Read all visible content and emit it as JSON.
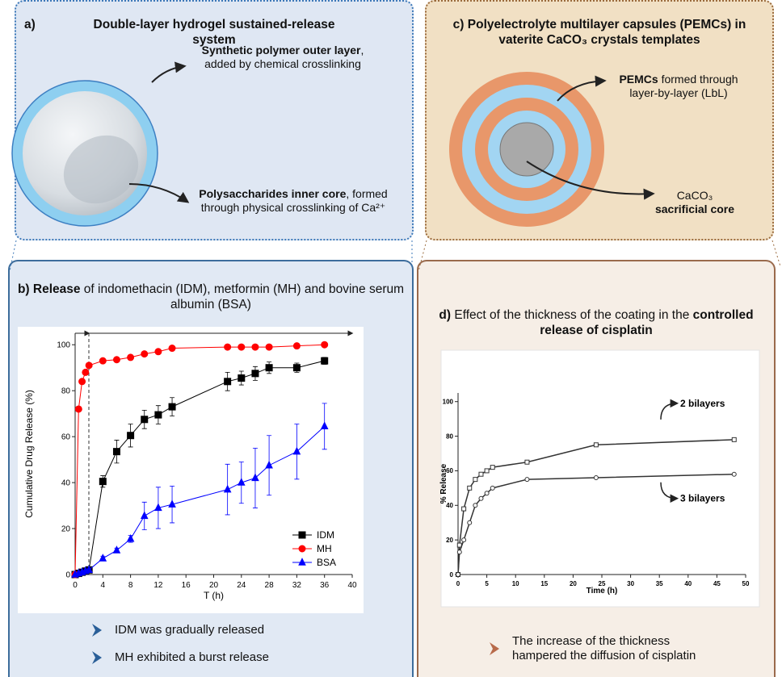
{
  "panels": {
    "a": {
      "label": "a)",
      "title": "Double-layer hydrogel sustained-release system",
      "outer_note": [
        "Synthetic polymer outer layer",
        ", added by chemical crosslinking"
      ],
      "inner_note": [
        "Polysaccharides inner core",
        ", formed through physical crosslinking of Ca²⁺"
      ]
    },
    "b": {
      "label": "b)",
      "title": [
        "Release",
        " of indomethacin (IDM), metformin (MH) and bovine serum albumin (BSA)"
      ],
      "notes": [
        "IDM was gradually released",
        "MH exhibited a burst release"
      ]
    },
    "c": {
      "label": "c)",
      "title": "Polyelectrolyte multilayer capsules (PEMCs) in vaterite CaCO₃ crystals templates",
      "outer_note": [
        "PEMCs",
        " formed through layer-by-layer (LbL)"
      ],
      "core_note": [
        "CaCO₃",
        "sacrificial core"
      ]
    },
    "d": {
      "label": "d)",
      "title": [
        "Effect of the thickness of the coating in the ",
        "controlled release of cisplatin"
      ],
      "notes": [
        "The increase of the thickness hampered the diffusion of cisplatin"
      ]
    }
  },
  "chart_data": [
    {
      "type": "line",
      "x_label": "T (h)",
      "y_label": "Cumulative Drug  Release (%)",
      "x": [
        0,
        0.5,
        1,
        1.5,
        2,
        4,
        6,
        8,
        10,
        12,
        14,
        22,
        24,
        26,
        28,
        32,
        36
      ],
      "xlim": [
        0,
        40
      ],
      "ylim": [
        0,
        105
      ],
      "xticks": [
        0,
        4,
        8,
        12,
        16,
        20,
        24,
        28,
        32,
        36,
        40
      ],
      "yticks": [
        0,
        20,
        40,
        60,
        80,
        100
      ],
      "legend": "lower right",
      "series": [
        {
          "name": "IDM",
          "color": "#000000",
          "marker": "square",
          "filled": true,
          "values": [
            0,
            0.5,
            1,
            1.5,
            2,
            40.5,
            53.5,
            60.5,
            67.5,
            69.5,
            73,
            84,
            85.5,
            87.5,
            90,
            90,
            93
          ],
          "errors": [
            0,
            0,
            0,
            0,
            0,
            2.5,
            5,
            5,
            4,
            4,
            4,
            4,
            3,
            3,
            2.5,
            2,
            1.5
          ]
        },
        {
          "name": "MH",
          "color": "#ff0000",
          "marker": "circle",
          "filled": true,
          "values": [
            0,
            72,
            84,
            88,
            91,
            93,
            93.5,
            94.5,
            96,
            97,
            98.5,
            99,
            99,
            99,
            99,
            99.5,
            100
          ],
          "errors": [
            0,
            0,
            0,
            0,
            0,
            0,
            0,
            0,
            0,
            0,
            0,
            0,
            0,
            0,
            0,
            0,
            0
          ]
        },
        {
          "name": "BSA",
          "color": "#0000ff",
          "marker": "triangle",
          "filled": true,
          "values": [
            0,
            0.5,
            1,
            1.5,
            2,
            7,
            10.5,
            15.5,
            25.5,
            29,
            30.5,
            37,
            40,
            42,
            47.5,
            53.5,
            64.5
          ],
          "errors": [
            0,
            0,
            0,
            0,
            0,
            1,
            1,
            1.5,
            6,
            9,
            8,
            11,
            9,
            13,
            13,
            12,
            10
          ]
        }
      ]
    },
    {
      "type": "line",
      "x_label": "Time (h)",
      "y_label": "% Release",
      "x": [
        0,
        0.25,
        1,
        2,
        3,
        4,
        5,
        6,
        12,
        24,
        48
      ],
      "xlim": [
        0,
        50
      ],
      "ylim": [
        0,
        105
      ],
      "xticks": [
        0,
        5,
        10,
        15,
        20,
        25,
        30,
        35,
        40,
        45,
        50
      ],
      "yticks": [
        0,
        20,
        40,
        60,
        80,
        100
      ],
      "legend": "inline",
      "series": [
        {
          "name": "2 bilayers",
          "color": "#333333",
          "marker": "square",
          "filled": false,
          "values": [
            0,
            17,
            38,
            50,
            55,
            58,
            60,
            62,
            65,
            75,
            78
          ]
        },
        {
          "name": "3 bilayers",
          "color": "#333333",
          "marker": "circle",
          "filled": false,
          "values": [
            0,
            13,
            20,
            30,
            40,
            44,
            47,
            50,
            55,
            56,
            58
          ]
        }
      ]
    }
  ]
}
